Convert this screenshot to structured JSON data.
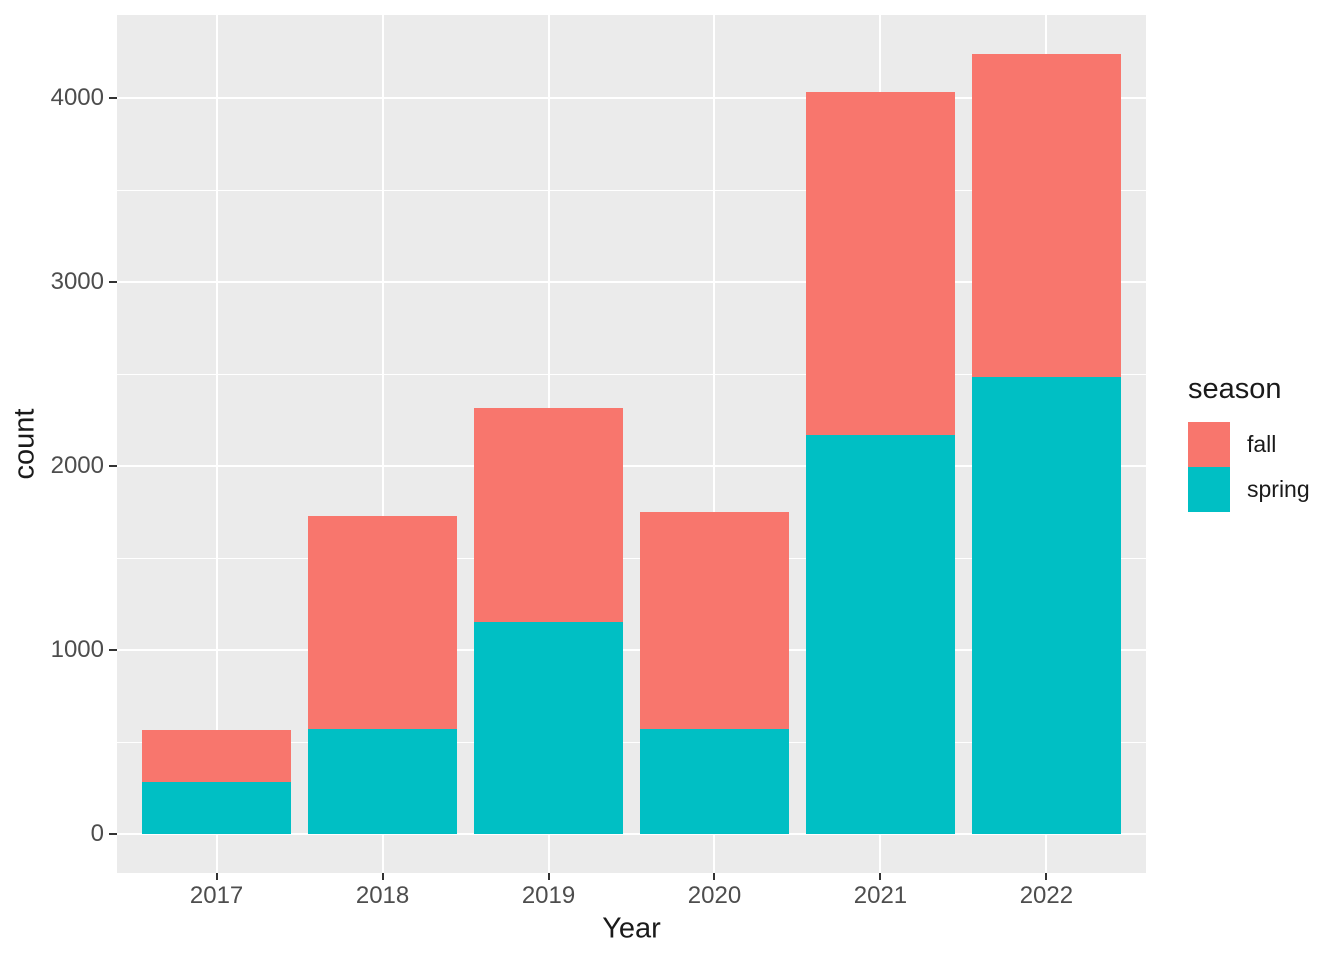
{
  "chart_data": {
    "type": "bar",
    "stacked": true,
    "title": "",
    "xlabel": "Year",
    "ylabel": "count",
    "categories": [
      "2017",
      "2018",
      "2019",
      "2020",
      "2021",
      "2022"
    ],
    "series": [
      {
        "name": "spring",
        "color": "#00BFC4",
        "values": [
          285,
          570,
          1155,
          570,
          2170,
          2485
        ]
      },
      {
        "name": "fall",
        "color": "#F8766D",
        "values": [
          280,
          1160,
          1160,
          1180,
          1865,
          1755
        ]
      }
    ],
    "totals": [
      565,
      1730,
      2315,
      1750,
      4035,
      4240
    ],
    "legend": {
      "title": "season",
      "position": "right",
      "entries": [
        {
          "label": "fall",
          "color": "#F8766D"
        },
        {
          "label": "spring",
          "color": "#00BFC4"
        }
      ]
    },
    "y_axis": {
      "ticks": [
        0,
        1000,
        2000,
        3000,
        4000
      ],
      "tick_labels": [
        "0",
        "1000",
        "2000",
        "3000",
        "4000"
      ],
      "minor_ticks": [
        500,
        1500,
        2500,
        3500
      ],
      "range": [
        -212,
        4452
      ]
    },
    "grid": true,
    "colors": {
      "panel_bg": "#EBEBEB",
      "grid": "#FFFFFF",
      "tick_label": "#4D4D4D",
      "axis_title": "#1A1A1A",
      "tick_mark": "#333333",
      "outer_bg": "#FFFFFF"
    }
  }
}
